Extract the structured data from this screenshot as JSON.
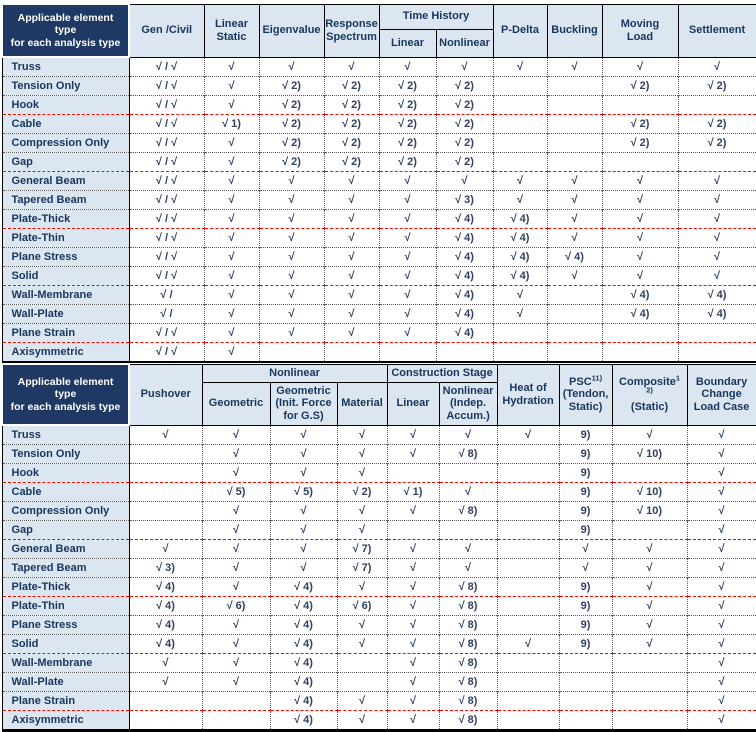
{
  "colors": {
    "header_dark_bg": "#1f3864",
    "header_light_bg": "#dce6f1",
    "header_text": "#17365d",
    "cell_text": "#31415f",
    "red_separator": "#ff0000"
  },
  "check_symbol": "√",
  "tables": {
    "top": {
      "header_row1": [
        {
          "corner": true,
          "rowspan": 2,
          "label": "Applicable element\ntype\nfor each analysis type"
        },
        {
          "rowspan": 2,
          "label": "Gen /Civil"
        },
        {
          "rowspan": 2,
          "label": "Linear\nStatic"
        },
        {
          "rowspan": 2,
          "label": "Eigenvalue"
        },
        {
          "rowspan": 2,
          "label": "Response\nSpectrum"
        },
        {
          "colspan": 2,
          "label": "Time History"
        },
        {
          "rowspan": 2,
          "label": "P-Delta"
        },
        {
          "rowspan": 2,
          "label": "Buckling"
        },
        {
          "rowspan": 2,
          "label": "Moving\nLoad"
        },
        {
          "rowspan": 2,
          "label": "Settlement"
        }
      ],
      "header_row2": [
        {
          "label": "Linear"
        },
        {
          "label": "Nonlinear"
        }
      ],
      "rows": [
        {
          "label": "Truss",
          "sep": "none",
          "cells": [
            "√ / √",
            "√",
            "√",
            "√",
            "√",
            "√",
            "√",
            "√",
            "√",
            "√"
          ]
        },
        {
          "label": "Tension Only",
          "sep": "dot",
          "cells": [
            "√ / √",
            "√",
            "√ 2)",
            "√ 2)",
            "√ 2)",
            "√ 2)",
            "",
            "",
            "√ 2)",
            "√ 2)"
          ]
        },
        {
          "label": "Hook",
          "sep": "dot",
          "cells": [
            "√ / √",
            "√",
            "√ 2)",
            "√ 2)",
            "√ 2)",
            "√ 2)",
            "",
            "",
            "",
            ""
          ]
        },
        {
          "label": "Cable",
          "sep": "red",
          "cells": [
            "√ / √",
            "√ 1)",
            "√ 2)",
            "√ 2)",
            "√ 2)",
            "√ 2)",
            "",
            "",
            "√ 2)",
            "√ 2)"
          ]
        },
        {
          "label": "Compression Only",
          "sep": "dot",
          "cells": [
            "√ / √",
            "√",
            "√ 2)",
            "√ 2)",
            "√ 2)",
            "√ 2)",
            "",
            "",
            "√ 2)",
            "√ 2)"
          ]
        },
        {
          "label": "Gap",
          "sep": "dot",
          "cells": [
            "√ / √",
            "√",
            "√ 2)",
            "√ 2)",
            "√ 2)",
            "√ 2)",
            "",
            "",
            "",
            ""
          ]
        },
        {
          "label": "General Beam",
          "sep": "red",
          "cells": [
            "√ / √",
            "√",
            "√",
            "√",
            "√",
            "√",
            "√",
            "√",
            "√",
            "√"
          ]
        },
        {
          "label": "Tapered Beam",
          "sep": "dot",
          "cells": [
            "√ / √",
            "√",
            "√",
            "√",
            "√",
            "√ 3)",
            "√",
            "√",
            "√",
            "√"
          ]
        },
        {
          "label": "Plate-Thick",
          "sep": "dot",
          "cells": [
            "√ / √",
            "√",
            "√",
            "√",
            "√",
            "√ 4)",
            "√ 4)",
            "√",
            "√",
            "√"
          ]
        },
        {
          "label": "Plate-Thin",
          "sep": "red",
          "cells": [
            "√ / √",
            "√",
            "√",
            "√",
            "√",
            "√ 4)",
            "√ 4)",
            "√",
            "√",
            "√"
          ]
        },
        {
          "label": "Plane Stress",
          "sep": "dot",
          "cells": [
            "√ / √",
            "√",
            "√",
            "√",
            "√",
            "√ 4)",
            "√ 4)",
            "√ 4)",
            "√",
            "√"
          ]
        },
        {
          "label": "Solid",
          "sep": "dot",
          "cells": [
            "√ / √",
            "√",
            "√",
            "√",
            "√",
            "√ 4)",
            "√ 4)",
            "√",
            "√",
            "√"
          ]
        },
        {
          "label": "Wall-Membrane",
          "sep": "red",
          "cells": [
            "√ /",
            "√",
            "√",
            "√",
            "√",
            "√ 4)",
            "√",
            "",
            "√ 4)",
            "√ 4)"
          ]
        },
        {
          "label": "Wall-Plate",
          "sep": "dot",
          "cells": [
            "√ /",
            "√",
            "√",
            "√",
            "√",
            "√ 4)",
            "√",
            "",
            "√ 4)",
            "√ 4)"
          ]
        },
        {
          "label": "Plane Strain",
          "sep": "dot",
          "cells": [
            "√ / √",
            "√",
            "√",
            "√",
            "√",
            "√ 4)",
            "",
            "",
            "",
            ""
          ]
        },
        {
          "label": "Axisymmetric",
          "sep": "red",
          "cells": [
            "√ / √",
            "√",
            "",
            "",
            "",
            "",
            "",
            "",
            "",
            ""
          ]
        }
      ]
    },
    "bottom": {
      "header_row1": [
        {
          "corner": true,
          "rowspan": 2,
          "label": "Applicable element\ntype\nfor each analysis type"
        },
        {
          "rowspan": 2,
          "label": "Pushover"
        },
        {
          "colspan": 3,
          "label": "Nonlinear"
        },
        {
          "colspan": 2,
          "label": "Construction Stage"
        },
        {
          "rowspan": 2,
          "label": "Heat of\nHydration"
        },
        {
          "rowspan": 2,
          "name": "psc-header",
          "parts": [
            {
              "text": "PSC"
            },
            {
              "sup": "11)"
            },
            {
              "break": true
            },
            {
              "text": "(Tendon,"
            },
            {
              "break": true
            },
            {
              "text": "Static)"
            }
          ]
        },
        {
          "rowspan": 2,
          "name": "composite-header",
          "parts": [
            {
              "text": "Composite"
            },
            {
              "sup": "1"
            },
            {
              "break": true
            },
            {
              "sup": "2)"
            },
            {
              "break": true
            },
            {
              "text": "(Static)"
            }
          ]
        },
        {
          "rowspan": 2,
          "label": "Boundary\nChange\nLoad Case"
        }
      ],
      "header_row2": [
        {
          "label": "Geometric"
        },
        {
          "label": "Geometric\n(Init. Force\nfor G.S)"
        },
        {
          "label": "Material"
        },
        {
          "label": "Linear"
        },
        {
          "label": "Nonlinear\n(Indep.\nAccum.)"
        }
      ],
      "rows": [
        {
          "label": "Truss",
          "sep": "none",
          "cells": [
            "√",
            "√",
            "√",
            "√",
            "√",
            "√",
            "√",
            "9)",
            "√",
            "√"
          ]
        },
        {
          "label": "Tension Only",
          "sep": "dot",
          "cells": [
            "",
            "√",
            "√",
            "√",
            "√",
            "√ 8)",
            "",
            "9)",
            "√ 10)",
            "√"
          ]
        },
        {
          "label": "Hook",
          "sep": "dot",
          "cells": [
            "",
            "√",
            "√",
            "√",
            "",
            "",
            "",
            "9)",
            "",
            "√"
          ]
        },
        {
          "label": "Cable",
          "sep": "red",
          "cells": [
            "",
            "√ 5)",
            "√ 5)",
            "√ 2)",
            "√ 1)",
            "√",
            "",
            "9)",
            "√ 10)",
            "√"
          ]
        },
        {
          "label": "Compression Only",
          "sep": "dot",
          "cells": [
            "",
            "√",
            "√",
            "√",
            "√",
            "√ 8)",
            "",
            "9)",
            "√ 10)",
            "√"
          ]
        },
        {
          "label": "Gap",
          "sep": "dot",
          "cells": [
            "",
            "√",
            "√",
            "√",
            "",
            "",
            "",
            "9)",
            "",
            "√"
          ]
        },
        {
          "label": "General Beam",
          "sep": "red",
          "cells": [
            "√",
            "√",
            "√",
            "√ 7)",
            "√",
            "√",
            "",
            "√",
            "√",
            "√"
          ]
        },
        {
          "label": "Tapered Beam",
          "sep": "dot",
          "cells": [
            "√ 3)",
            "√",
            "√",
            "√ 7)",
            "√",
            "√",
            "",
            "√",
            "√",
            "√"
          ]
        },
        {
          "label": "Plate-Thick",
          "sep": "dot",
          "cells": [
            "√ 4)",
            "√",
            "√ 4)",
            "√",
            "√",
            "√ 8)",
            "",
            "9)",
            "√",
            "√"
          ]
        },
        {
          "label": "Plate-Thin",
          "sep": "red",
          "cells": [
            "√ 4)",
            "√ 6)",
            "√ 4)",
            "√ 6)",
            "√",
            "√ 8)",
            "",
            "9)",
            "√",
            "√"
          ]
        },
        {
          "label": "Plane Stress",
          "sep": "dot",
          "cells": [
            "√ 4)",
            "√",
            "√ 4)",
            "√",
            "√",
            "√ 8)",
            "",
            "9)",
            "√",
            "√"
          ]
        },
        {
          "label": "Solid",
          "sep": "dot",
          "cells": [
            "√ 4)",
            "√",
            "√ 4)",
            "√",
            "√",
            "√ 8)",
            "√",
            "9)",
            "√",
            "√"
          ]
        },
        {
          "label": "Wall-Membrane",
          "sep": "red",
          "cells": [
            "√",
            "√",
            "√ 4)",
            "",
            "√",
            "√ 8)",
            "",
            "",
            "",
            "√"
          ]
        },
        {
          "label": "Wall-Plate",
          "sep": "dot",
          "cells": [
            "√",
            "√",
            "√ 4)",
            "",
            "√",
            "√ 8)",
            "",
            "",
            "",
            "√"
          ]
        },
        {
          "label": "Plane Strain",
          "sep": "dot",
          "cells": [
            "",
            "",
            "√ 4)",
            "√",
            "√",
            "√ 8)",
            "",
            "",
            "",
            "√"
          ]
        },
        {
          "label": "Axisymmetric",
          "sep": "red",
          "cells": [
            "",
            "",
            "√ 4)",
            "√",
            "√",
            "√ 8)",
            "",
            "",
            "",
            "√"
          ]
        }
      ]
    }
  }
}
